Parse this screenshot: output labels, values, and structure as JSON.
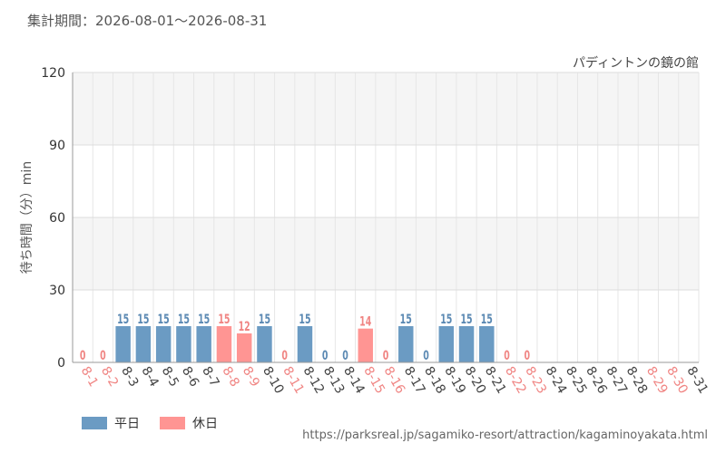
{
  "header": {
    "period": "集計期間：2026-08-01～2026-08-31"
  },
  "chart_data": {
    "type": "bar",
    "title": "パディントンの鏡の館",
    "ylabel": "待ち時間（分）min",
    "ylim": [
      0,
      120
    ],
    "yticks": [
      0,
      30,
      60,
      90,
      120
    ],
    "grid": true,
    "categories": [
      "8-1",
      "8-2",
      "8-3",
      "8-4",
      "8-5",
      "8-6",
      "8-7",
      "8-8",
      "8-9",
      "8-10",
      "8-11",
      "8-12",
      "8-13",
      "8-14",
      "8-15",
      "8-16",
      "8-17",
      "8-18",
      "8-19",
      "8-20",
      "8-21",
      "8-22",
      "8-23",
      "8-24",
      "8-25",
      "8-26",
      "8-27",
      "8-28",
      "8-29",
      "8-30",
      "8-31"
    ],
    "values": [
      0,
      0,
      15,
      15,
      15,
      15,
      15,
      15,
      12,
      15,
      0,
      15,
      0,
      0,
      14,
      0,
      15,
      0,
      15,
      15,
      15,
      0,
      0,
      null,
      null,
      null,
      null,
      null,
      null,
      null,
      null
    ],
    "day_type": [
      "holiday",
      "holiday",
      "weekday",
      "weekday",
      "weekday",
      "weekday",
      "weekday",
      "holiday",
      "holiday",
      "weekday",
      "holiday",
      "weekday",
      "weekday",
      "weekday",
      "holiday",
      "holiday",
      "weekday",
      "weekday",
      "weekday",
      "weekday",
      "weekday",
      "holiday",
      "holiday",
      "weekday",
      "weekday",
      "weekday",
      "weekday",
      "weekday",
      "holiday",
      "holiday",
      "weekday"
    ],
    "series": [
      {
        "name": "平日",
        "key": "weekday",
        "color": "#6b9bc3",
        "label_color": "#5b89b3"
      },
      {
        "name": "休日",
        "key": "holiday",
        "color": "#ff9593",
        "label_color": "#f08583"
      }
    ]
  },
  "legend": {
    "weekday_label": "平日",
    "holiday_label": "休日"
  },
  "footer": {
    "source_url": "https://parksreal.jp/sagamiko-resort/attraction/kagaminoyakata.html"
  }
}
